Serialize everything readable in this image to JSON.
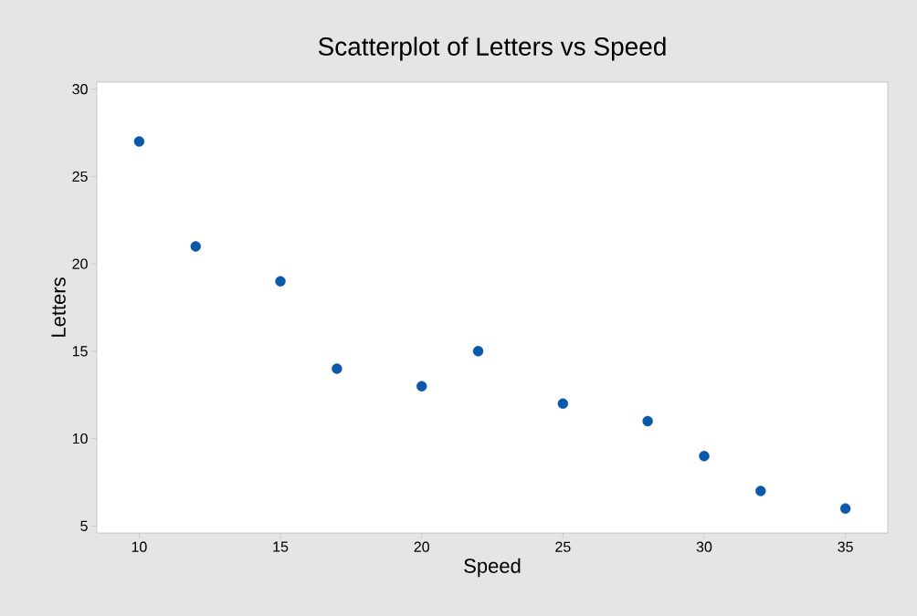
{
  "chart_data": {
    "type": "scatter",
    "title": "Scatterplot of Letters vs Speed",
    "xlabel": "Speed",
    "ylabel": "Letters",
    "x": [
      10,
      12,
      15,
      17,
      20,
      22,
      25,
      28,
      30,
      32,
      35
    ],
    "values": [
      27,
      21,
      19,
      14,
      13,
      15,
      12,
      11,
      9,
      7,
      6
    ],
    "color": "#0a58a8",
    "xlim": [
      8.5,
      36.5
    ],
    "ylim": [
      4.6,
      30.4
    ],
    "xticks": [
      10,
      15,
      20,
      25,
      30,
      35
    ],
    "yticks": [
      5,
      10,
      15,
      20,
      25,
      30
    ]
  }
}
